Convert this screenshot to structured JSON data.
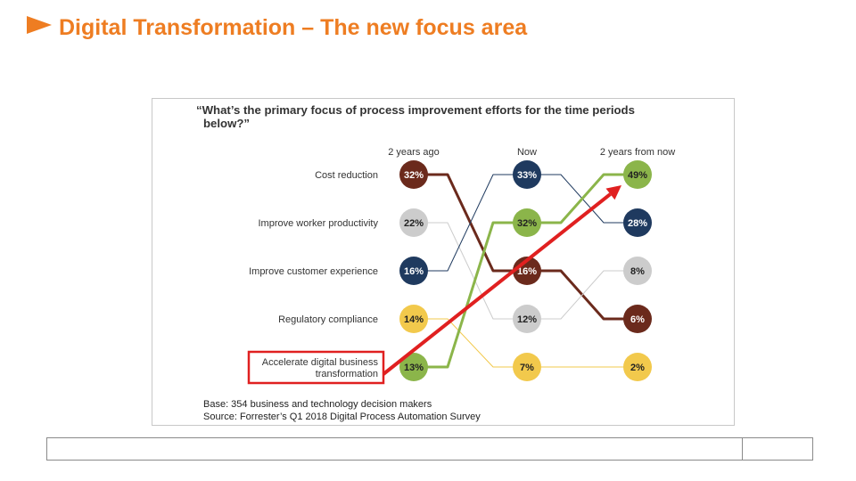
{
  "slide": {
    "title": "Digital Transformation – The new focus area"
  },
  "colors": {
    "accent": "#ee7d22",
    "highlight": "#e02020"
  },
  "chart_data": {
    "type": "bump",
    "title": "“What’s the primary focus of process improvement efforts for the time periods below?”",
    "periods": [
      "2 years ago",
      "Now",
      "2 years from now"
    ],
    "series": [
      {
        "name": "Cost reduction",
        "color": "#6b2a1c",
        "values": [
          32,
          16,
          6
        ],
        "labels": [
          "32%",
          "16%",
          "6%"
        ],
        "ranks": [
          1,
          3,
          4
        ]
      },
      {
        "name": "Improve worker productivity",
        "color": "#cccccc",
        "values": [
          22,
          12,
          8
        ],
        "labels": [
          "22%",
          "12%",
          "8%"
        ],
        "ranks": [
          2,
          4,
          3
        ]
      },
      {
        "name": "Improve customer experience",
        "color": "#1f3a5f",
        "values": [
          16,
          33,
          28
        ],
        "labels": [
          "16%",
          "33%",
          "28%"
        ],
        "ranks": [
          3,
          1,
          2
        ]
      },
      {
        "name": "Regulatory compliance",
        "color": "#f2c94c",
        "values": [
          14,
          7,
          2
        ],
        "labels": [
          "14%",
          "7%",
          "2%"
        ],
        "ranks": [
          4,
          5,
          5
        ]
      },
      {
        "name": "Accelerate digital business transformation",
        "label_lines": [
          "Accelerate digital business",
          "transformation"
        ],
        "color": "#8bb54a",
        "values": [
          13,
          32,
          49
        ],
        "labels": [
          "13%",
          "32%",
          "49%"
        ],
        "ranks": [
          5,
          2,
          1
        ]
      }
    ],
    "dark_text_colors": [
      "#1f3a5f",
      "#6b2a1c"
    ],
    "highlighted_series": "Accelerate digital business transformation",
    "base_note": "Base: 354 business and technology decision makers",
    "source_note": "Source: Forrester’s Q1 2018 Digital Process Automation Survey"
  }
}
